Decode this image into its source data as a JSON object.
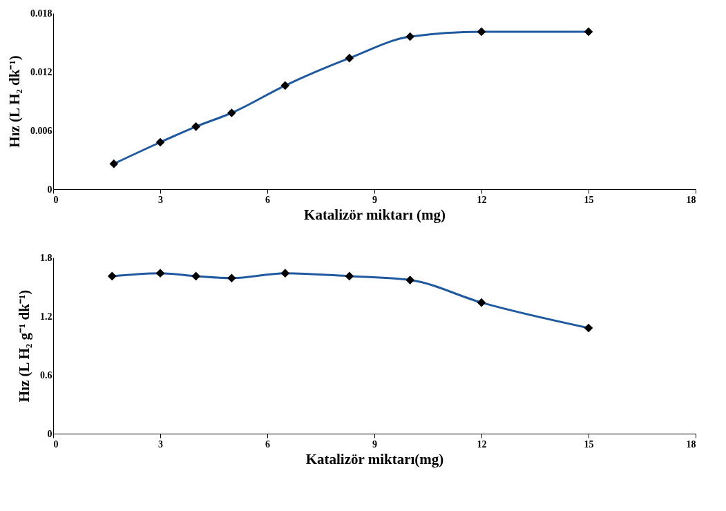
{
  "chart_data": [
    {
      "type": "line",
      "xlabel": "Katalizör miktarı (mg)",
      "ylabel": "Hız (L H₂ dk⁻¹)",
      "x": [
        1.7,
        3,
        4,
        5,
        6.5,
        8.3,
        10,
        12,
        15
      ],
      "series": [
        {
          "color": "#1f5aa0",
          "values": [
            0.0026,
            0.0048,
            0.0064,
            0.0078,
            0.0106,
            0.0134,
            0.0156,
            0.0161,
            0.0161
          ]
        }
      ],
      "xlim": [
        0,
        18
      ],
      "xticks": [
        0,
        3,
        6,
        9,
        12,
        15,
        18
      ],
      "ylim": [
        0,
        0.018
      ],
      "yticks": [
        0,
        0.006,
        0.012,
        0.018
      ],
      "marker": "diamond",
      "line_style": "solid",
      "grid": false
    },
    {
      "type": "line",
      "xlabel": "Katalizör miktarı(mg)",
      "ylabel": "Hız (L H₂ g⁻¹ dk⁻¹)",
      "x": [
        1.65,
        3,
        4,
        5,
        6.5,
        8.3,
        10,
        12,
        15
      ],
      "series": [
        {
          "color": "#1f5aa0",
          "values": [
            1.61,
            1.64,
            1.61,
            1.59,
            1.64,
            1.61,
            1.57,
            1.34,
            1.08
          ]
        }
      ],
      "xlim": [
        0,
        18
      ],
      "xticks": [
        0,
        3,
        6,
        9,
        12,
        15,
        18
      ],
      "ylim": [
        0,
        1.8
      ],
      "yticks": [
        0,
        0.6,
        1.2,
        1.8
      ],
      "marker": "diamond",
      "line_style": "solid",
      "grid": false
    }
  ]
}
